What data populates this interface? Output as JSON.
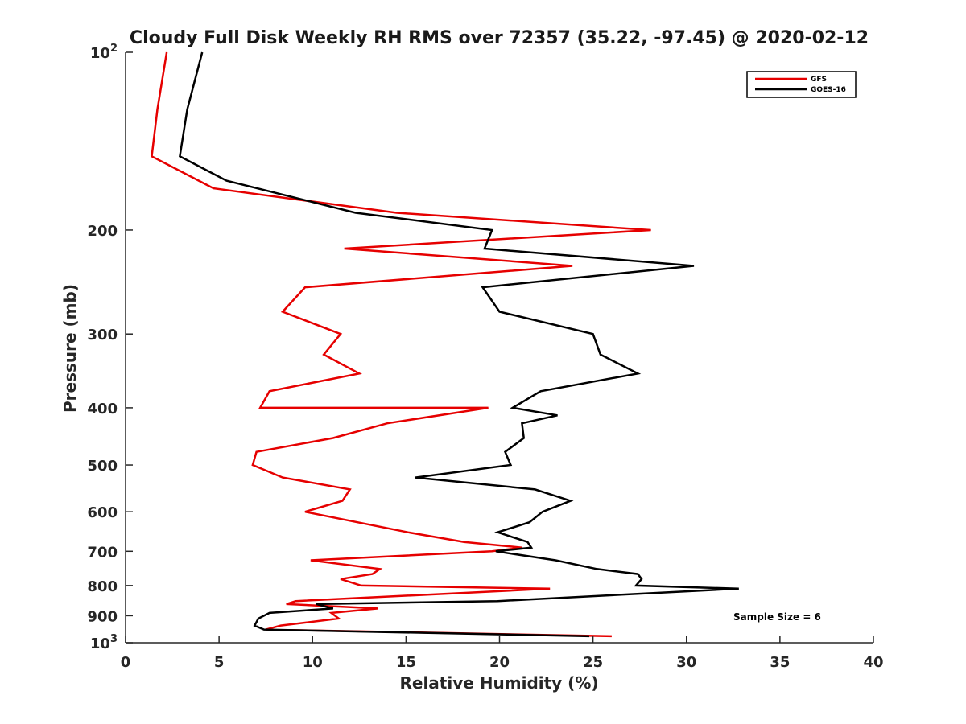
{
  "chart_data": {
    "type": "line",
    "title": "Cloudy Full Disk Weekly RH RMS over 72357 (35.22, -97.45) @ 2020-02-12",
    "xlabel": "Relative Humidity (%)",
    "ylabel": "Pressure (mb)",
    "xlim": [
      0,
      40
    ],
    "ylim": [
      100,
      1000
    ],
    "y_scale": "log",
    "y_reversed": true,
    "x_ticks": [
      "0",
      "5",
      "10",
      "15",
      "20",
      "25",
      "30",
      "35",
      "40"
    ],
    "y_ticks": [
      {
        "value": 100,
        "base": "10",
        "exp": "2"
      },
      {
        "value": 200,
        "label": "200"
      },
      {
        "value": 300,
        "label": "300"
      },
      {
        "value": 400,
        "label": "400"
      },
      {
        "value": 500,
        "label": "500"
      },
      {
        "value": 600,
        "label": "600"
      },
      {
        "value": 700,
        "label": "700"
      },
      {
        "value": 800,
        "label": "800"
      },
      {
        "value": 900,
        "label": "900"
      },
      {
        "value": 1000,
        "base": "10",
        "exp": "3"
      }
    ],
    "grid": false,
    "legend_position": "top-right",
    "annotation": "Sample Size = 6",
    "series": [
      {
        "name": "GFS",
        "color": "#e60000",
        "points": [
          {
            "x": 2.2,
            "y": 100
          },
          {
            "x": 1.7,
            "y": 125
          },
          {
            "x": 1.4,
            "y": 150
          },
          {
            "x": 4.7,
            "y": 170
          },
          {
            "x": 14.5,
            "y": 187
          },
          {
            "x": 28.1,
            "y": 200
          },
          {
            "x": 11.7,
            "y": 215
          },
          {
            "x": 23.9,
            "y": 230
          },
          {
            "x": 9.6,
            "y": 250
          },
          {
            "x": 8.4,
            "y": 275
          },
          {
            "x": 11.5,
            "y": 300
          },
          {
            "x": 10.6,
            "y": 325
          },
          {
            "x": 12.5,
            "y": 350
          },
          {
            "x": 7.7,
            "y": 375
          },
          {
            "x": 7.2,
            "y": 400
          },
          {
            "x": 19.4,
            "y": 400
          },
          {
            "x": 14.0,
            "y": 425
          },
          {
            "x": 11.1,
            "y": 450
          },
          {
            "x": 7.0,
            "y": 475
          },
          {
            "x": 6.8,
            "y": 500
          },
          {
            "x": 8.4,
            "y": 525
          },
          {
            "x": 12.0,
            "y": 550
          },
          {
            "x": 11.6,
            "y": 575
          },
          {
            "x": 9.6,
            "y": 600
          },
          {
            "x": 12.4,
            "y": 625
          },
          {
            "x": 15.1,
            "y": 650
          },
          {
            "x": 18.1,
            "y": 675
          },
          {
            "x": 21.2,
            "y": 690
          },
          {
            "x": 19.6,
            "y": 700
          },
          {
            "x": 9.9,
            "y": 725
          },
          {
            "x": 13.6,
            "y": 750
          },
          {
            "x": 13.2,
            "y": 765
          },
          {
            "x": 11.5,
            "y": 780
          },
          {
            "x": 12.6,
            "y": 800
          },
          {
            "x": 22.7,
            "y": 810
          },
          {
            "x": 9.1,
            "y": 850
          },
          {
            "x": 8.6,
            "y": 860
          },
          {
            "x": 13.5,
            "y": 875
          },
          {
            "x": 11.0,
            "y": 890
          },
          {
            "x": 11.4,
            "y": 910
          },
          {
            "x": 8.3,
            "y": 935
          },
          {
            "x": 7.5,
            "y": 950
          },
          {
            "x": 26.0,
            "y": 975
          }
        ]
      },
      {
        "name": "GOES-16",
        "color": "#000000",
        "points": [
          {
            "x": 4.1,
            "y": 100
          },
          {
            "x": 3.3,
            "y": 125
          },
          {
            "x": 2.9,
            "y": 150
          },
          {
            "x": 5.4,
            "y": 165
          },
          {
            "x": 12.3,
            "y": 187
          },
          {
            "x": 19.6,
            "y": 200
          },
          {
            "x": 19.2,
            "y": 215
          },
          {
            "x": 30.4,
            "y": 230
          },
          {
            "x": 19.1,
            "y": 250
          },
          {
            "x": 20.0,
            "y": 275
          },
          {
            "x": 25.0,
            "y": 300
          },
          {
            "x": 25.4,
            "y": 325
          },
          {
            "x": 27.4,
            "y": 350
          },
          {
            "x": 22.2,
            "y": 375
          },
          {
            "x": 20.7,
            "y": 400
          },
          {
            "x": 23.1,
            "y": 412
          },
          {
            "x": 21.2,
            "y": 425
          },
          {
            "x": 21.3,
            "y": 450
          },
          {
            "x": 20.3,
            "y": 475
          },
          {
            "x": 20.6,
            "y": 500
          },
          {
            "x": 15.5,
            "y": 525
          },
          {
            "x": 21.9,
            "y": 550
          },
          {
            "x": 23.8,
            "y": 575
          },
          {
            "x": 22.3,
            "y": 600
          },
          {
            "x": 21.6,
            "y": 625
          },
          {
            "x": 19.9,
            "y": 650
          },
          {
            "x": 21.5,
            "y": 675
          },
          {
            "x": 21.7,
            "y": 690
          },
          {
            "x": 19.8,
            "y": 700
          },
          {
            "x": 23.0,
            "y": 725
          },
          {
            "x": 25.2,
            "y": 750
          },
          {
            "x": 27.4,
            "y": 765
          },
          {
            "x": 27.6,
            "y": 780
          },
          {
            "x": 27.3,
            "y": 800
          },
          {
            "x": 32.8,
            "y": 810
          },
          {
            "x": 19.9,
            "y": 850
          },
          {
            "x": 10.2,
            "y": 860
          },
          {
            "x": 11.1,
            "y": 875
          },
          {
            "x": 7.7,
            "y": 890
          },
          {
            "x": 7.1,
            "y": 910
          },
          {
            "x": 6.9,
            "y": 935
          },
          {
            "x": 7.4,
            "y": 950
          },
          {
            "x": 24.8,
            "y": 975
          }
        ]
      }
    ]
  }
}
